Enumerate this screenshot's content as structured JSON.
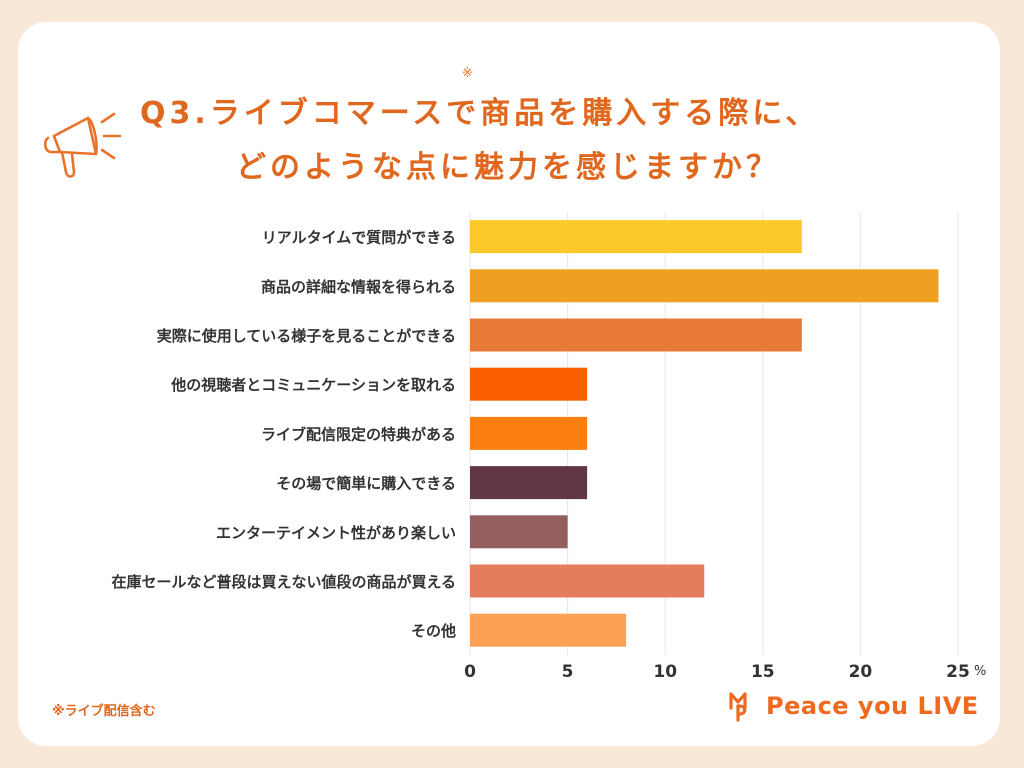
{
  "header": {
    "title_line1": "Q3.ライブコマースで商品を購入する際に、",
    "title_line2": "どのような点に魅力を感じますか？",
    "title_mark": "※"
  },
  "footer": {
    "note": "※ライブ配信含む",
    "brand": "Peace you LIVE"
  },
  "colors": {
    "accent": "#e0671e",
    "background": "#f7e8d8",
    "gridline": "#e6e6e6"
  },
  "chart_data": {
    "type": "bar",
    "orientation": "horizontal",
    "categories": [
      "リアルタイムで質問ができる",
      "商品の詳細な情報を得られる",
      "実際に使用している様子を見ることができる",
      "他の視聴者とコミュニケーションを取れる",
      "ライブ配信限定の特典がある",
      "その場で簡単に購入できる",
      "エンターテイメント性があり楽しい",
      "在庫セールなど普段は買えない値段の商品が買える",
      "その他"
    ],
    "values": [
      17,
      24,
      17,
      6,
      6,
      6,
      5,
      12,
      8
    ],
    "bar_colors": [
      "#fdc92a",
      "#f0a020",
      "#e87a38",
      "#fa6000",
      "#fb7f10",
      "#613744",
      "#925f5e",
      "#e47d5c",
      "#fba155"
    ],
    "xlim": [
      0,
      25
    ],
    "xticks": [
      0,
      5,
      10,
      15,
      20,
      25
    ],
    "xtick_labels": [
      "0",
      "5",
      "10",
      "15",
      "20",
      "25"
    ],
    "x_unit": "%",
    "grid": true
  }
}
